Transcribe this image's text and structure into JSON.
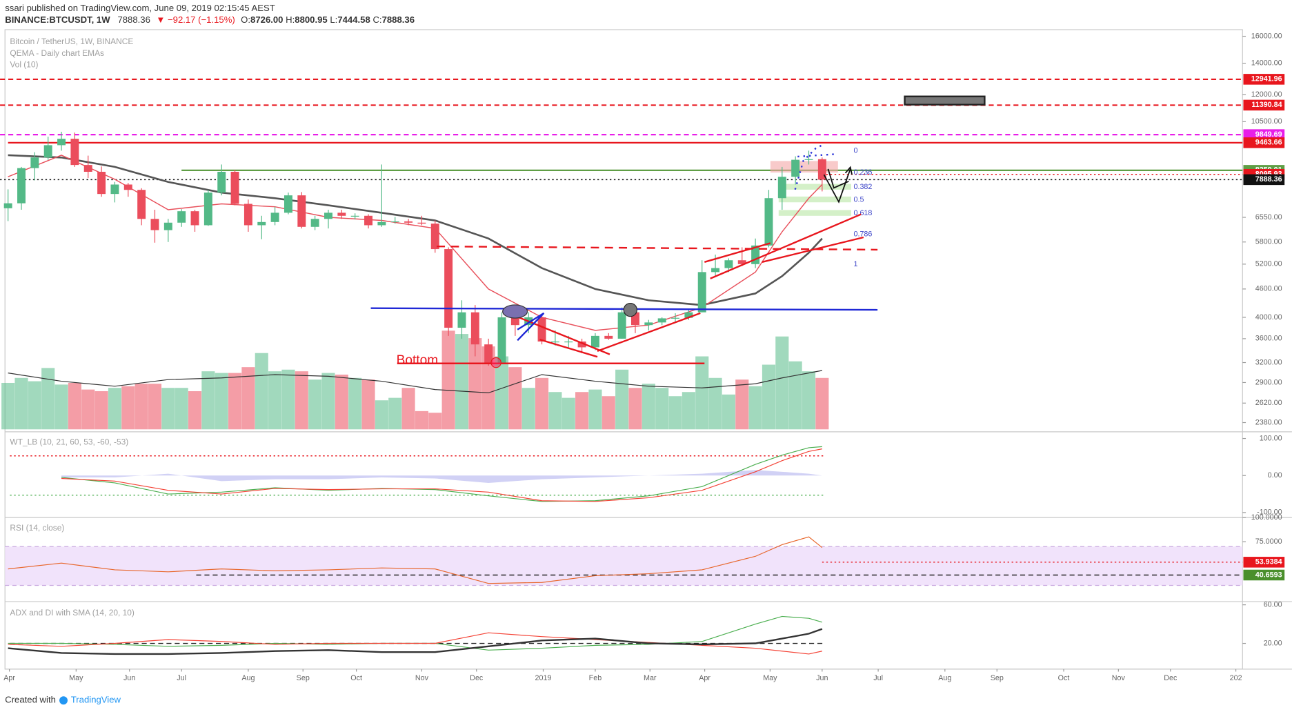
{
  "header": {
    "user": "ssari",
    "published": "published on TradingView.com, June 09, 2019 02:15:45 AEST",
    "symbol": "BINANCE:BTCUSDT, 1W",
    "last": "7888.36",
    "change": "▼ −92.17 (−1.15%)",
    "ohlc": [
      {
        "key": "O:",
        "value": "8726.00"
      },
      {
        "key": "H:",
        "value": "8800.95"
      },
      {
        "key": "L:",
        "value": "7444.58"
      },
      {
        "key": "C:",
        "value": "7888.36"
      }
    ]
  },
  "footer": {
    "created": "Created with",
    "brand": "TradingView"
  },
  "chart_data": {
    "type": "candlestick",
    "title": "Bitcoin / TetherUS, 1W, BINANCE",
    "subtitle": [
      "QEMA - Daily chart EMAs",
      "Vol (10)"
    ],
    "up_color": "#53b987",
    "down_color": "#eb4d5c",
    "log": true,
    "grid": false,
    "ohlc": [
      [
        6850,
        7520,
        6430,
        7020
      ],
      [
        7020,
        8400,
        6800,
        8350
      ],
      [
        8350,
        9030,
        7860,
        8800
      ],
      [
        8800,
        9750,
        8700,
        9350
      ],
      [
        9350,
        9990,
        9100,
        9650
      ],
      [
        9650,
        9950,
        8400,
        8480
      ],
      [
        8480,
        8880,
        7950,
        8200
      ],
      [
        8200,
        8420,
        7250,
        7350
      ],
      [
        7350,
        7800,
        7050,
        7700
      ],
      [
        7700,
        7760,
        7250,
        7500
      ],
      [
        7500,
        7560,
        6300,
        6500
      ],
      [
        6500,
        6800,
        5780,
        6150
      ],
      [
        6150,
        6500,
        5800,
        6380
      ],
      [
        6380,
        6820,
        6250,
        6750
      ],
      [
        6750,
        6800,
        6100,
        6300
      ],
      [
        6300,
        7500,
        6280,
        7400
      ],
      [
        7400,
        8500,
        7300,
        8200
      ],
      [
        8200,
        8280,
        6950,
        7000
      ],
      [
        7000,
        7150,
        6100,
        6300
      ],
      [
        6300,
        6600,
        5880,
        6400
      ],
      [
        6400,
        6900,
        6300,
        6700
      ],
      [
        6700,
        7400,
        6650,
        7300
      ],
      [
        7300,
        7420,
        6200,
        6250
      ],
      [
        6250,
        6600,
        6150,
        6500
      ],
      [
        6500,
        6800,
        6200,
        6700
      ],
      [
        6700,
        6800,
        6500,
        6600
      ],
      [
        6600,
        6680,
        6480,
        6600
      ],
      [
        6600,
        6650,
        6200,
        6300
      ],
      [
        6300,
        8500,
        6250,
        6400
      ],
      [
        6400,
        6560,
        6350,
        6420
      ],
      [
        6420,
        6500,
        6300,
        6380
      ],
      [
        6380,
        6600,
        6300,
        6350
      ],
      [
        6350,
        6450,
        5500,
        5600
      ],
      [
        5600,
        5650,
        3650,
        3800
      ],
      [
        3800,
        4350,
        3600,
        4100
      ],
      [
        4100,
        4250,
        3300,
        3500
      ],
      [
        3500,
        3600,
        3150,
        3200
      ],
      [
        3200,
        4100,
        3200,
        4000
      ],
      [
        4000,
        4250,
        3650,
        3850
      ],
      [
        3850,
        4100,
        3700,
        4000
      ],
      [
        4000,
        4050,
        3500,
        3550
      ],
      [
        3550,
        3750,
        3480,
        3550
      ],
      [
        3550,
        3650,
        3450,
        3550
      ],
      [
        3550,
        3600,
        3350,
        3450
      ],
      [
        3450,
        3700,
        3400,
        3650
      ],
      [
        3650,
        3700,
        3580,
        3600
      ],
      [
        3600,
        4200,
        3600,
        4100
      ],
      [
        4100,
        4200,
        3700,
        3850
      ],
      [
        3850,
        3950,
        3750,
        3900
      ],
      [
        3900,
        4000,
        3850,
        3980
      ],
      [
        3980,
        4080,
        3900,
        3990
      ],
      [
        3990,
        4150,
        3950,
        4100
      ],
      [
        4100,
        5300,
        4100,
        5000
      ],
      [
        5000,
        5450,
        4900,
        5100
      ],
      [
        5100,
        5350,
        5000,
        5300
      ],
      [
        5300,
        5650,
        5150,
        5200
      ],
      [
        5200,
        5900,
        5100,
        5700
      ],
      [
        5700,
        7500,
        5650,
        7200
      ],
      [
        7200,
        8400,
        6800,
        8000
      ],
      [
        8000,
        8850,
        7700,
        8700
      ],
      [
        8700,
        9100,
        8500,
        8726
      ],
      [
        8726,
        8800.95,
        7444.58,
        7888.36
      ]
    ],
    "volume": [
      56,
      62,
      58,
      74,
      54,
      56,
      48,
      46,
      50,
      52,
      55,
      55,
      50,
      50,
      46,
      70,
      68,
      68,
      75,
      92,
      70,
      72,
      70,
      60,
      68,
      66,
      62,
      60,
      35,
      38,
      50,
      22,
      20,
      119,
      115,
      110,
      100,
      88,
      75,
      50,
      62,
      45,
      38,
      45,
      48,
      40,
      72,
      50,
      55,
      50,
      40,
      45,
      88,
      62,
      42,
      60,
      52,
      78,
      112,
      82,
      70,
      62
    ],
    "vlim": [
      0,
      480
    ],
    "volume_ma": {
      "color": "#333333",
      "values": [
        68,
        58,
        52,
        60,
        62,
        66,
        64,
        58,
        48,
        44,
        66,
        58,
        52,
        50,
        55,
        62,
        68,
        71
      ]
    },
    "overlay_x": [
      0,
      4,
      8,
      12,
      16,
      20,
      24,
      28,
      32,
      36,
      40,
      44,
      48,
      52,
      56,
      58,
      60,
      61
    ],
    "overlays": [
      {
        "color": "#555555",
        "width": 2.2,
        "values": [
          8900,
          8800,
          8400,
          7800,
          7400,
          7200,
          6950,
          6700,
          6450,
          5900,
          5100,
          4600,
          4350,
          4250,
          4500,
          4900,
          5500,
          5900
        ]
      },
      {
        "color": "#e8505b",
        "width": 1.2,
        "values": [
          8000,
          8900,
          7900,
          6800,
          7000,
          6900,
          6550,
          6450,
          6200,
          4600,
          4000,
          3750,
          3850,
          4200,
          5000,
          6100,
          7200,
          7700
        ]
      }
    ],
    "xlim": [
      -0.6,
      92.5
    ],
    "xticks": [
      {
        "value": 0.1,
        "label": "Apr"
      },
      {
        "value": 5.1,
        "label": "May"
      },
      {
        "value": 9.1,
        "label": "Jun"
      },
      {
        "value": 13,
        "label": "Jul"
      },
      {
        "value": 18,
        "label": "Aug"
      },
      {
        "value": 22.1,
        "label": "Sep"
      },
      {
        "value": 26.1,
        "label": "Oct"
      },
      {
        "value": 31,
        "label": "Nov"
      },
      {
        "value": 35.1,
        "label": "Dec"
      },
      {
        "value": 40.1,
        "label": "2019"
      },
      {
        "value": 44,
        "label": "Feb"
      },
      {
        "value": 48.1,
        "label": "Mar"
      },
      {
        "value": 52.2,
        "label": "Apr"
      },
      {
        "value": 57.1,
        "label": "May"
      },
      {
        "value": 61,
        "label": "Jun"
      },
      {
        "value": 65.2,
        "label": "Jul"
      },
      {
        "value": 70.2,
        "label": "Aug"
      },
      {
        "value": 74.1,
        "label": "Sep"
      },
      {
        "value": 79.1,
        "label": "Oct"
      },
      {
        "value": 83.2,
        "label": "Nov"
      },
      {
        "value": 87.1,
        "label": "Dec"
      },
      {
        "value": 92,
        "label": "202"
      }
    ],
    "ylim": [
      2302,
      16395
    ],
    "yticks": [
      {
        "value": 16000,
        "label": "16000.00"
      },
      {
        "value": 14000,
        "label": "14000.00"
      },
      {
        "value": 12000,
        "label": "12000.00"
      },
      {
        "value": 10500,
        "label": "10500.00"
      },
      {
        "value": 6550,
        "label": "6550.00"
      },
      {
        "value": 5800,
        "label": "5800.00"
      },
      {
        "value": 5200,
        "label": "5200.00"
      },
      {
        "value": 4600,
        "label": "4600.00"
      },
      {
        "value": 4000,
        "label": "4000.00"
      },
      {
        "value": 3600,
        "label": "3600.00"
      },
      {
        "value": 3200,
        "label": "3200.00"
      },
      {
        "value": 2900,
        "label": "2900.00"
      },
      {
        "value": 2620,
        "label": "2620.00"
      },
      {
        "value": 2380,
        "label": "2380.00"
      }
    ],
    "levels": [
      {
        "value": 12941.96,
        "color": "#e8161d",
        "style": "dashed",
        "start": null
      },
      {
        "value": 11390.84,
        "color": "#e8161d",
        "style": "dashed",
        "start": null
      },
      {
        "value": 9849.69,
        "color": "#e81ee8",
        "style": "dashed",
        "start": null
      },
      {
        "value": 9463.66,
        "color": "#e8161d",
        "style": "solid",
        "start": 0
      },
      {
        "value": 8259.01,
        "color": "#5f9e45",
        "style": "solid",
        "start": 13
      },
      {
        "value": 8095.93,
        "color": "#e8161d",
        "style": "dotted",
        "start": 61
      },
      {
        "value": 7888.36,
        "color": "#111111",
        "style": "dotted",
        "start": null
      }
    ],
    "fib": {
      "high": 9090,
      "low": 5190,
      "levels": [
        0,
        0.236,
        0.382,
        0.5,
        0.618,
        0.786,
        1
      ],
      "color": "#3b44c8"
    },
    "annotations": [
      "Bottom"
    ],
    "panels": [
      {
        "title": "WT_LB (10, 21, 60, 53, -60, -53)",
        "ylim": [
          -109,
          118
        ],
        "yticks": [
          {
            "value": 100,
            "label": "100.00"
          },
          {
            "value": 0,
            "label": "0.00"
          },
          {
            "value": -100,
            "label": "-100.00"
          }
        ],
        "levels": [
          {
            "value": 53,
            "color": "#e8161d",
            "style": "dotted"
          },
          {
            "value": -53,
            "color": "#4caf50",
            "style": "dotted"
          }
        ],
        "series": [
          {
            "color": "#9a9ae8",
            "area": true,
            "values": [
              null,
              -5,
              -5,
              5,
              -15,
              -10,
              -10,
              -5,
              -8,
              -20,
              -10,
              -5,
              0,
              5,
              15,
              10,
              5,
              0
            ]
          },
          {
            "color": "#4caf50",
            "values": [
              null,
              -5,
              -20,
              -50,
              -45,
              -33,
              -40,
              -35,
              -38,
              -55,
              -70,
              -68,
              -55,
              -30,
              30,
              55,
              75,
              78
            ]
          },
          {
            "color": "#f44336",
            "values": [
              null,
              -8,
              -15,
              -40,
              -50,
              -35,
              -38,
              -36,
              -36,
              -45,
              -68,
              -70,
              -60,
              -40,
              10,
              40,
              65,
              72
            ]
          }
        ]
      },
      {
        "title": "RSI (14, close)",
        "ylim": [
          15,
          100
        ],
        "yticks": [
          {
            "value": 100,
            "label": "100.0000"
          },
          {
            "value": 75,
            "label": "75.0000"
          }
        ],
        "band": {
          "range": [
            30,
            70
          ],
          "color": "#f1e3fb"
        },
        "levels": [
          {
            "value": 53.9384,
            "color": "#e8161d",
            "style": "dotted",
            "start": 61,
            "tag": true
          },
          {
            "value": 40.6593,
            "color": "#222222",
            "tag_color": "#4a8f2c",
            "style": "dashed",
            "start": 14.1,
            "tag": true
          }
        ],
        "series": [
          {
            "color": "#e8672c",
            "values": [
              47,
              53,
              46,
              44,
              47,
              45,
              46,
              48,
              47,
              32,
              33,
              40,
              42,
              46,
              60,
              72,
              80,
              69
            ]
          }
        ]
      },
      {
        "title": "ADX and DI with SMA (14, 20, 10)",
        "ylim": [
          -5,
          62.5
        ],
        "yticks": [
          {
            "value": 60,
            "label": "60.00"
          },
          {
            "value": 20,
            "label": "20.00"
          }
        ],
        "levels": [
          {
            "value": 20,
            "color": "#222222",
            "style": "dashed"
          }
        ],
        "series": [
          {
            "color": "#4caf50",
            "values": [
              20,
              20,
              19,
              17,
              18,
              20,
              19,
              20,
              20,
              13,
              15,
              18,
              19,
              22,
              40,
              48,
              46,
              42
            ]
          },
          {
            "color": "#f44336",
            "values": [
              19,
              17,
              20,
              24,
              22,
              19,
              20,
              20,
              20,
              31,
              27,
              24,
              21,
              18,
              15,
              12,
              9,
              12
            ]
          },
          {
            "color": "#333333",
            "width": 2,
            "values": [
              15,
              10,
              9,
              9,
              10,
              12,
              13,
              11,
              11,
              17,
              23,
              25,
              20,
              19,
              20,
              25,
              30,
              35
            ]
          }
        ]
      }
    ]
  }
}
